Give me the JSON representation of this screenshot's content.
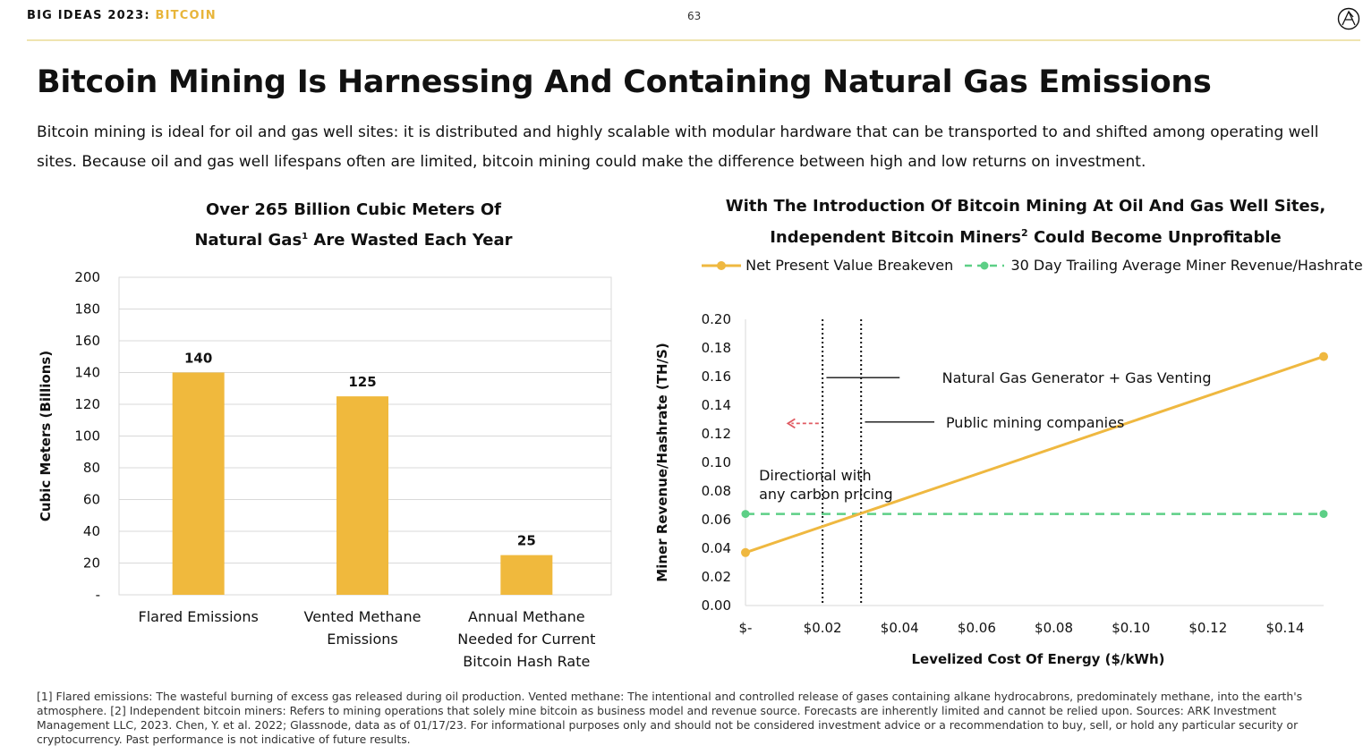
{
  "header": {
    "brand_prefix": "BIG IDEAS 2023:",
    "brand_topic": "BITCOIN",
    "page_number": "63"
  },
  "title": "Bitcoin Mining Is Harnessing And Containing Natural Gas Emissions",
  "intro": "Bitcoin mining is ideal for oil and gas well sites: it is distributed and highly scalable with modular hardware that can be transported to and shifted among operating well sites. Because oil and gas well lifespans often are limited, bitcoin mining could make the difference between high and low returns on investment.",
  "left_chart_title": {
    "line1": "Over 265 Billion Cubic Meters Of",
    "line2_a": "Natural Gas",
    "line2_sup": "1",
    "line2_b": " Are Wasted Each Year"
  },
  "right_chart_title": {
    "line1": "With The Introduction Of Bitcoin Mining At Oil And Gas Well Sites,",
    "line2_a": "Independent Bitcoin Miners",
    "line2_sup": "2",
    "line2_b": " Could Become Unprofitable"
  },
  "legend": {
    "series1": "Net Present Value Breakeven",
    "series2": "30 Day Trailing Average Miner Revenue/Hashrate"
  },
  "footnote": "[1] Flared emissions: The wasteful burning of excess gas released during oil production. Vented methane: The intentional and controlled release of gases containing alkane hydrocabrons, predominately methane, into the earth's atmosphere. [2] Independent bitcoin miners: Refers to mining operations that solely mine bitcoin as business model and revenue source. Forecasts are inherently limited and cannot be relied upon. Sources: ARK Investment Management LLC, 2023. Chen, Y. et al. 2022; Glassnode, data as of 01/17/23. For informational purposes only and should not be considered investment advice or a recommendation to buy, sell, or hold any particular security or cryptocurrency. Past performance is not indicative of future results.",
  "colors": {
    "accent": "#e8b53a",
    "bar": "#f0b93d",
    "line": "#efb840",
    "dashed": "#5dcf86",
    "arrow": "#e05a62"
  },
  "chart_data": [
    {
      "type": "bar",
      "ylabel": "Cubic Meters (Billions)",
      "ylim": [
        0,
        200
      ],
      "yticks": [
        "-",
        "20",
        "40",
        "60",
        "80",
        "100",
        "120",
        "140",
        "160",
        "180",
        "200"
      ],
      "categories": [
        [
          "Flared Emissions"
        ],
        [
          "Vented Methane",
          "Emissions"
        ],
        [
          "Annual Methane",
          "Needed for Current",
          "Bitcoin Hash Rate"
        ]
      ],
      "values": [
        140,
        125,
        25
      ],
      "data_labels": [
        "140",
        "125",
        "25"
      ],
      "grid": true
    },
    {
      "type": "line",
      "xlabel": "Levelized Cost Of Energy ($/kWh)",
      "ylabel": "Miner Revenue/Hashrate (TH/S)",
      "xlim": [
        0,
        0.15
      ],
      "ylim": [
        0,
        0.2
      ],
      "xticks": [
        0,
        0.02,
        0.04,
        0.06,
        0.08,
        0.1,
        0.12,
        0.14
      ],
      "xtick_labels": [
        "$-",
        "$0.02",
        "$0.04",
        "$0.06",
        "$0.08",
        "$0.10",
        "$0.12",
        "$0.14"
      ],
      "yticks": [
        0,
        0.02,
        0.04,
        0.06,
        0.08,
        0.1,
        0.12,
        0.14,
        0.16,
        0.18,
        0.2
      ],
      "ytick_labels": [
        "0.00",
        "0.02",
        "0.04",
        "0.06",
        "0.08",
        "0.10",
        "0.12",
        "0.14",
        "0.16",
        "0.18",
        "0.20"
      ],
      "series": [
        {
          "name": "Net Present Value Breakeven",
          "x": [
            0,
            0.15
          ],
          "y": [
            0.037,
            0.174
          ],
          "style": "solid"
        },
        {
          "name": "30 Day Trailing Average Miner Revenue/Hashrate",
          "x": [
            0,
            0.15
          ],
          "y": [
            0.064,
            0.064
          ],
          "style": "dashed"
        }
      ],
      "vlines": [
        {
          "x": 0.02,
          "style": "dotted"
        },
        {
          "x": 0.03,
          "style": "dotted"
        }
      ],
      "annotations": [
        {
          "text": "Natural Gas Generator + Gas Venting",
          "x": 0.051,
          "y": 0.163,
          "line_from_x": 0.021,
          "line_to_x": 0.04
        },
        {
          "text": "Public mining companies",
          "x": 0.052,
          "y": 0.132,
          "line_from_x": 0.031,
          "line_to_x": 0.049
        },
        {
          "text": "Directional with",
          "x": 0.0035,
          "y": 0.095
        },
        {
          "text": "any carbon pricing",
          "x": 0.0035,
          "y": 0.082
        }
      ],
      "arrow": {
        "from_x": 0.019,
        "to_x": 0.011,
        "y": 0.131
      },
      "legend_position": "top"
    }
  ]
}
